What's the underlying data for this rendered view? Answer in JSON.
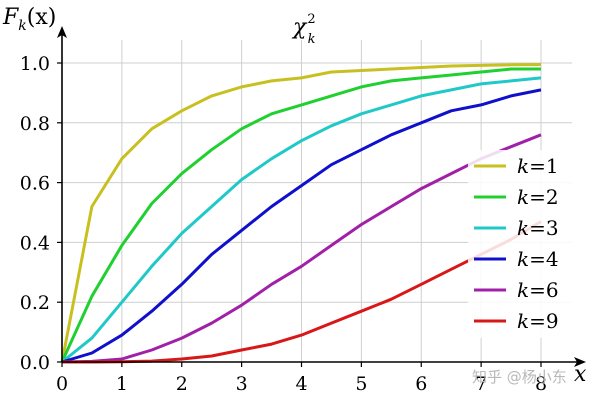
{
  "chart_data": {
    "type": "line",
    "title": "χ",
    "title_sub": "k",
    "title_sup": "2",
    "ylabel": "F",
    "ylabel_sub": "k",
    "ylabel_arg": "(x)",
    "xlabel": "x",
    "xlim": [
      0,
      8
    ],
    "ylim": [
      0,
      1.0
    ],
    "x_ticks": [
      "0",
      "1",
      "2",
      "3",
      "4",
      "5",
      "6",
      "7",
      "8"
    ],
    "y_ticks": [
      "0.0",
      "0.2",
      "0.4",
      "0.6",
      "0.8",
      "1.0"
    ],
    "grid": true,
    "legend_position": "right",
    "x": [
      0,
      0.5,
      1,
      1.5,
      2,
      2.5,
      3,
      3.5,
      4,
      4.5,
      5,
      5.5,
      6,
      6.5,
      7,
      7.5,
      8
    ],
    "series": [
      {
        "name": "k=1",
        "k": "1",
        "color": "#c8c020",
        "values": [
          0,
          0.52,
          0.68,
          0.78,
          0.84,
          0.89,
          0.92,
          0.94,
          0.95,
          0.97,
          0.975,
          0.98,
          0.985,
          0.99,
          0.992,
          0.994,
          0.995
        ]
      },
      {
        "name": "k=2",
        "k": "2",
        "color": "#20d030",
        "values": [
          0,
          0.22,
          0.39,
          0.53,
          0.63,
          0.71,
          0.78,
          0.83,
          0.86,
          0.89,
          0.92,
          0.94,
          0.95,
          0.96,
          0.97,
          0.98,
          0.98
        ]
      },
      {
        "name": "k=3",
        "k": "3",
        "color": "#20c8c8",
        "values": [
          0,
          0.08,
          0.2,
          0.32,
          0.43,
          0.52,
          0.61,
          0.68,
          0.74,
          0.79,
          0.83,
          0.86,
          0.89,
          0.91,
          0.93,
          0.94,
          0.95
        ]
      },
      {
        "name": "k=4",
        "k": "4",
        "color": "#1010cc",
        "values": [
          0,
          0.03,
          0.09,
          0.17,
          0.26,
          0.36,
          0.44,
          0.52,
          0.59,
          0.66,
          0.71,
          0.76,
          0.8,
          0.84,
          0.86,
          0.89,
          0.91
        ]
      },
      {
        "name": "k=6",
        "k": "6",
        "color": "#a020a8",
        "values": [
          0,
          0.002,
          0.01,
          0.04,
          0.08,
          0.13,
          0.19,
          0.26,
          0.32,
          0.39,
          0.46,
          0.52,
          0.58,
          0.63,
          0.68,
          0.72,
          0.76
        ]
      },
      {
        "name": "k=9",
        "k": "9",
        "color": "#d81818",
        "values": [
          0,
          0,
          0.001,
          0.003,
          0.01,
          0.02,
          0.04,
          0.06,
          0.09,
          0.13,
          0.17,
          0.21,
          0.26,
          0.31,
          0.36,
          0.41,
          0.47
        ]
      }
    ]
  },
  "watermark": "知乎 @杨小东"
}
